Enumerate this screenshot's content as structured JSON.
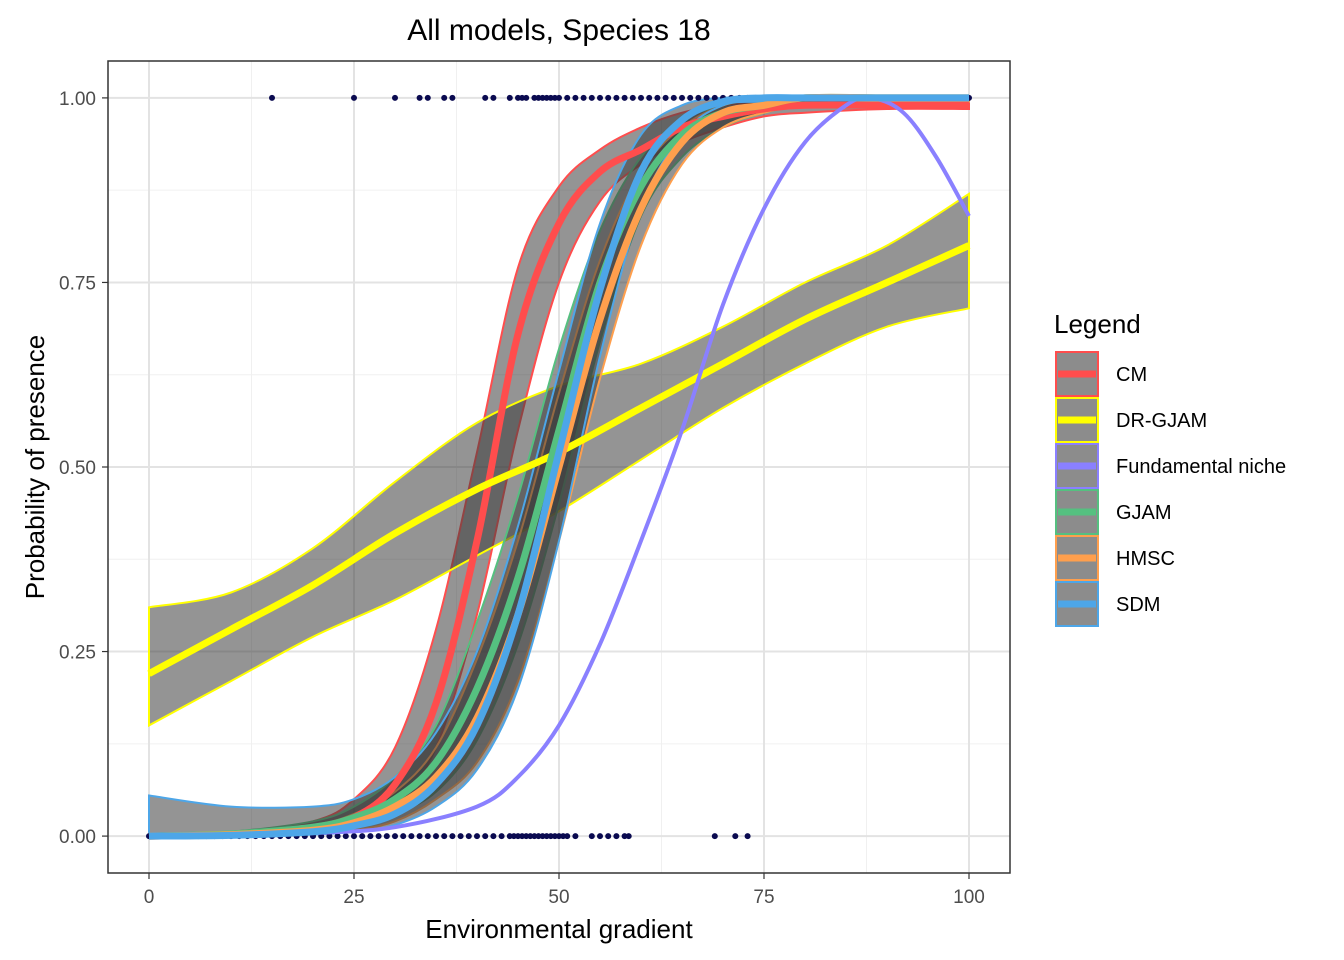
{
  "chart_data": {
    "type": "line",
    "title": "All models, Species 18",
    "xlabel": "Environmental gradient",
    "ylabel": "Probability of presence",
    "xlim": [
      -5,
      105
    ],
    "ylim": [
      -0.05,
      1.05
    ],
    "xticks": [
      0,
      25,
      50,
      75,
      100
    ],
    "xtick_labels": [
      "0",
      "25",
      "50",
      "75",
      "100"
    ],
    "yticks": [
      0,
      0.25,
      0.5,
      0.75,
      1
    ],
    "ytick_labels": [
      "0.00",
      "0.25",
      "0.50",
      "0.75",
      "1.00"
    ],
    "grid": true,
    "legend": {
      "title": "Legend",
      "position": "right"
    },
    "series": [
      {
        "name": "CM",
        "color": "#ff4d4d",
        "x": [
          0,
          10,
          20,
          25,
          30,
          35,
          40,
          45,
          50,
          55,
          60,
          65,
          70,
          75,
          80,
          90,
          100
        ],
        "y": [
          0.0,
          0.002,
          0.01,
          0.025,
          0.07,
          0.18,
          0.4,
          0.68,
          0.83,
          0.9,
          0.93,
          0.96,
          0.975,
          0.985,
          0.99,
          0.99,
          0.99
        ],
        "lower": [
          0.0,
          0.0,
          0.005,
          0.015,
          0.04,
          0.12,
          0.3,
          0.55,
          0.75,
          0.86,
          0.91,
          0.94,
          0.96,
          0.975,
          0.98,
          0.985,
          0.985
        ],
        "upper": [
          0.0,
          0.004,
          0.02,
          0.05,
          0.12,
          0.28,
          0.52,
          0.77,
          0.88,
          0.93,
          0.96,
          0.98,
          0.99,
          0.995,
          1.0,
          1.0,
          1.0
        ]
      },
      {
        "name": "DR-GJAM",
        "color": "#ffff00",
        "x": [
          0,
          10,
          20,
          30,
          40,
          50,
          60,
          70,
          80,
          90,
          100
        ],
        "y": [
          0.22,
          0.28,
          0.34,
          0.41,
          0.47,
          0.52,
          0.58,
          0.64,
          0.7,
          0.75,
          0.8
        ],
        "lower": [
          0.15,
          0.21,
          0.27,
          0.32,
          0.38,
          0.44,
          0.51,
          0.58,
          0.64,
          0.69,
          0.715
        ],
        "upper": [
          0.31,
          0.33,
          0.39,
          0.48,
          0.56,
          0.61,
          0.64,
          0.69,
          0.75,
          0.8,
          0.87
        ]
      },
      {
        "name": "Fundamental niche",
        "color": "#8a80ff",
        "x": [
          0,
          10,
          20,
          30,
          40,
          45,
          50,
          55,
          60,
          65,
          70,
          75,
          80,
          85,
          88,
          92,
          96,
          100
        ],
        "y": [
          0.0,
          0.001,
          0.004,
          0.012,
          0.04,
          0.08,
          0.15,
          0.26,
          0.4,
          0.55,
          0.72,
          0.85,
          0.94,
          0.99,
          1.0,
          0.98,
          0.92,
          0.84
        ],
        "lower": [],
        "upper": []
      },
      {
        "name": "GJAM",
        "color": "#55c080",
        "x": [
          0,
          10,
          20,
          25,
          30,
          35,
          40,
          45,
          50,
          55,
          60,
          65,
          70,
          75,
          80,
          90,
          100
        ],
        "y": [
          0.0,
          0.003,
          0.012,
          0.025,
          0.05,
          0.1,
          0.2,
          0.35,
          0.55,
          0.75,
          0.88,
          0.95,
          0.98,
          0.99,
          1.0,
          1.0,
          1.0
        ],
        "lower": [
          0.0,
          0.0,
          0.005,
          0.012,
          0.03,
          0.06,
          0.13,
          0.26,
          0.45,
          0.67,
          0.84,
          0.92,
          0.96,
          0.98,
          0.99,
          0.995,
          0.995
        ],
        "upper": [
          0.002,
          0.006,
          0.02,
          0.04,
          0.08,
          0.15,
          0.29,
          0.46,
          0.66,
          0.82,
          0.92,
          0.97,
          0.99,
          1.0,
          1.0,
          1.0,
          1.0
        ]
      },
      {
        "name": "HMSC",
        "color": "#ff9f4d",
        "x": [
          0,
          10,
          20,
          25,
          30,
          35,
          40,
          45,
          50,
          55,
          60,
          65,
          70,
          75,
          80,
          90,
          100
        ],
        "y": [
          0.0,
          0.002,
          0.008,
          0.018,
          0.04,
          0.08,
          0.16,
          0.3,
          0.5,
          0.7,
          0.85,
          0.94,
          0.98,
          0.99,
          1.0,
          1.0,
          1.0
        ],
        "lower": [
          0.0,
          0.0,
          0.003,
          0.008,
          0.02,
          0.05,
          0.1,
          0.21,
          0.4,
          0.62,
          0.8,
          0.91,
          0.96,
          0.98,
          0.99,
          0.995,
          0.995
        ],
        "upper": [
          0.002,
          0.005,
          0.015,
          0.03,
          0.06,
          0.12,
          0.24,
          0.4,
          0.6,
          0.78,
          0.9,
          0.96,
          0.99,
          1.0,
          1.0,
          1.0,
          1.0
        ]
      },
      {
        "name": "SDM",
        "color": "#4da6e8",
        "x": [
          0,
          10,
          20,
          25,
          30,
          35,
          40,
          45,
          50,
          55,
          60,
          65,
          70,
          75,
          80,
          90,
          100
        ],
        "y": [
          0.0,
          0.001,
          0.006,
          0.014,
          0.03,
          0.07,
          0.15,
          0.3,
          0.52,
          0.74,
          0.9,
          0.97,
          0.995,
          1.0,
          1.0,
          1.0,
          1.0
        ],
        "lower": [
          0.0,
          0.0,
          0.002,
          0.006,
          0.015,
          0.04,
          0.09,
          0.2,
          0.4,
          0.65,
          0.85,
          0.95,
          0.99,
          0.995,
          1.0,
          1.0,
          1.0
        ],
        "upper": [
          0.055,
          0.04,
          0.04,
          0.05,
          0.08,
          0.14,
          0.25,
          0.42,
          0.63,
          0.83,
          0.95,
          0.99,
          1.0,
          1.0,
          1.0,
          1.0,
          1.0
        ]
      }
    ],
    "observations": {
      "color": "#0a0a50",
      "presence_x": [
        15,
        25,
        30,
        33,
        34,
        36,
        37,
        41,
        42,
        44,
        45,
        45.5,
        46,
        47,
        47.5,
        48,
        48.5,
        49,
        49.5,
        50,
        51,
        52,
        53,
        54,
        55,
        56,
        57,
        58,
        59,
        60,
        61,
        62,
        63,
        64,
        65,
        66,
        67,
        68,
        69,
        70,
        71,
        72,
        73,
        74,
        75,
        76,
        77,
        78,
        79,
        80,
        81,
        82,
        83,
        84,
        85,
        86,
        87,
        88,
        89,
        90,
        91,
        92,
        93,
        94,
        95,
        96,
        97,
        98,
        99,
        100
      ],
      "absence_x": [
        0,
        1,
        2,
        3,
        4,
        5,
        6,
        7,
        8,
        9,
        10,
        11,
        12,
        13,
        14,
        15,
        16,
        17,
        18,
        19,
        20,
        21,
        22,
        23,
        24,
        25,
        26,
        27,
        28,
        29,
        30,
        31,
        32,
        33,
        34,
        35,
        36,
        37,
        38,
        39,
        40,
        41,
        42,
        43,
        44,
        44.5,
        45,
        45.5,
        46,
        46.5,
        47,
        47.5,
        48,
        48.5,
        49,
        49.5,
        50,
        50.5,
        51,
        52,
        54,
        55,
        56,
        57,
        58,
        58.5,
        69,
        71.5,
        73
      ]
    }
  }
}
